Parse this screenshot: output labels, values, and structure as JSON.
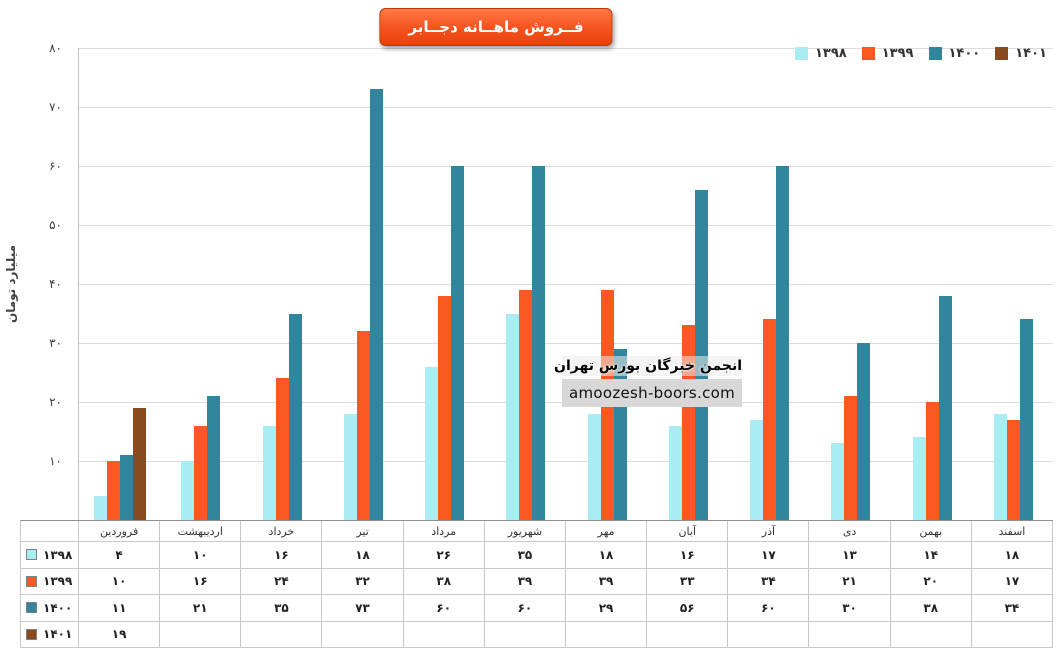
{
  "title": "فــروش ماهــانه دجــابر",
  "y_axis_label": "میلیارد تومان",
  "watermark": {
    "line1": "انجمن خبرگان بورس تهران",
    "line2": "amoozesh-boors.com"
  },
  "chart_data": {
    "type": "bar",
    "title": "فــروش ماهــانه دجــابر",
    "ylabel": "میلیارد تومان",
    "ylim": [
      0,
      80
    ],
    "ytick_step": 10,
    "yticks_fa": [
      "۰",
      "۱۰",
      "۲۰",
      "۳۰",
      "۴۰",
      "۵۰",
      "۶۰",
      "۷۰",
      "۸۰"
    ],
    "grid": true,
    "legend_position": "top-right",
    "categories": [
      "فروردین",
      "اردیبهشت",
      "خرداد",
      "تیر",
      "مرداد",
      "شهریور",
      "مهر",
      "آبان",
      "آذر",
      "دی",
      "بهمن",
      "اسفند"
    ],
    "series": [
      {
        "name": "۱۳۹۸",
        "name_en": "1398",
        "color": "#a8ecf4",
        "values": [
          4,
          10,
          16,
          18,
          26,
          35,
          18,
          16,
          17,
          13,
          14,
          18
        ],
        "values_fa": [
          "۴",
          "۱۰",
          "۱۶",
          "۱۸",
          "۲۶",
          "۳۵",
          "۱۸",
          "۱۶",
          "۱۷",
          "۱۳",
          "۱۴",
          "۱۸"
        ]
      },
      {
        "name": "۱۳۹۹",
        "name_en": "1399",
        "color": "#f95821",
        "values": [
          10,
          16,
          24,
          32,
          38,
          39,
          39,
          33,
          34,
          21,
          20,
          17
        ],
        "values_fa": [
          "۱۰",
          "۱۶",
          "۲۴",
          "۳۲",
          "۳۸",
          "۳۹",
          "۳۹",
          "۳۳",
          "۳۴",
          "۲۱",
          "۲۰",
          "۱۷"
        ]
      },
      {
        "name": "۱۴۰۰",
        "name_en": "1400",
        "color": "#31859c",
        "values": [
          11,
          21,
          35,
          73,
          60,
          60,
          29,
          56,
          60,
          30,
          38,
          34
        ],
        "values_fa": [
          "۱۱",
          "۲۱",
          "۳۵",
          "۷۳",
          "۶۰",
          "۶۰",
          "۲۹",
          "۵۶",
          "۶۰",
          "۳۰",
          "۳۸",
          "۳۴"
        ]
      },
      {
        "name": "۱۴۰۱",
        "name_en": "1401",
        "color": "#8a4a1f",
        "values": [
          19,
          null,
          null,
          null,
          null,
          null,
          null,
          null,
          null,
          null,
          null,
          null
        ],
        "values_fa": [
          "۱۹",
          "",
          "",
          "",
          "",
          "",
          "",
          "",
          "",
          "",
          "",
          ""
        ]
      }
    ]
  }
}
